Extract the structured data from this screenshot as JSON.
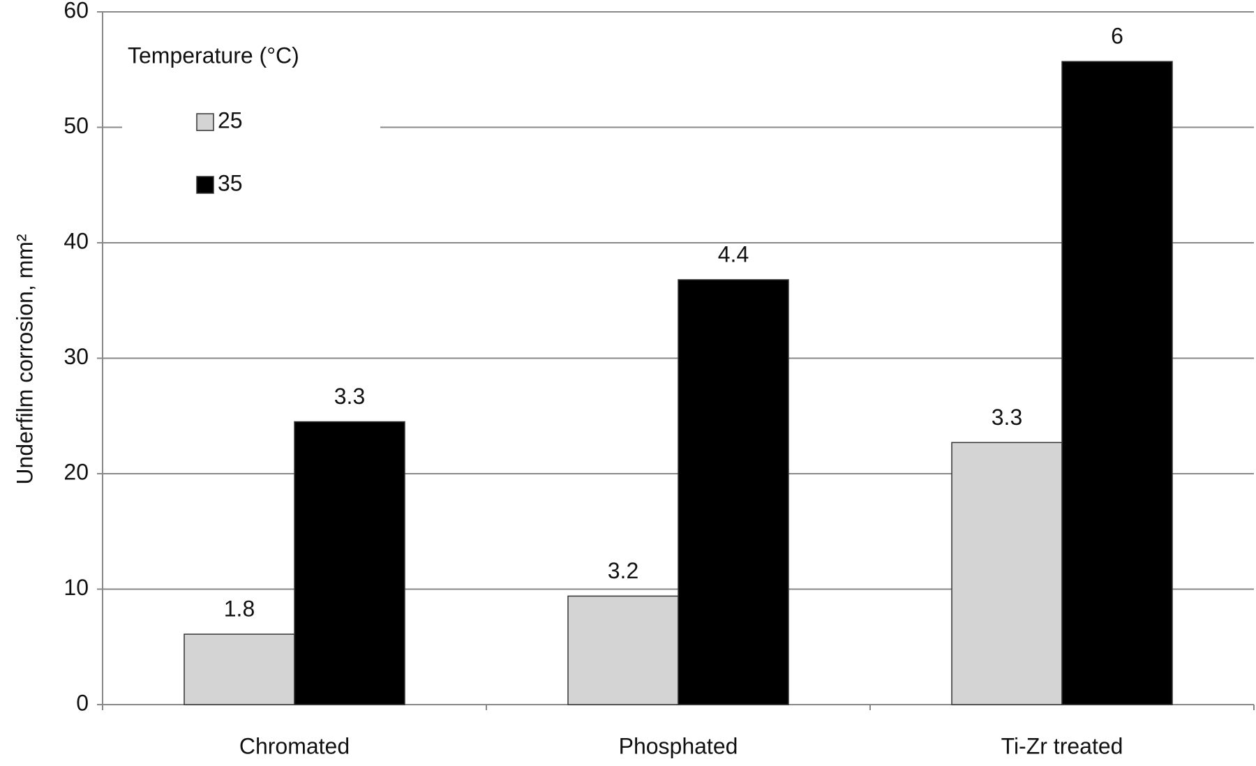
{
  "chart_data": {
    "type": "bar",
    "y_label": "Underfilm corrosion, mm²",
    "legend_title": "Temperature (°C)",
    "legend": "top-left",
    "categories": [
      "Chromated",
      "Phosphated",
      "Ti-Zr treated"
    ],
    "series": [
      {
        "name": "25",
        "color": "#d4d4d4",
        "values": [
          6.1,
          9.4,
          22.7
        ],
        "bar_labels": [
          "1.8",
          "3.2",
          "3.3"
        ]
      },
      {
        "name": "35",
        "color": "#000000",
        "values": [
          24.5,
          36.8,
          55.7
        ],
        "bar_labels": [
          "3.3",
          "4.4",
          "6"
        ]
      }
    ],
    "ylim": [
      0,
      60
    ],
    "yticks": [
      0,
      10,
      20,
      30,
      40,
      50,
      60
    ],
    "grid": true
  }
}
